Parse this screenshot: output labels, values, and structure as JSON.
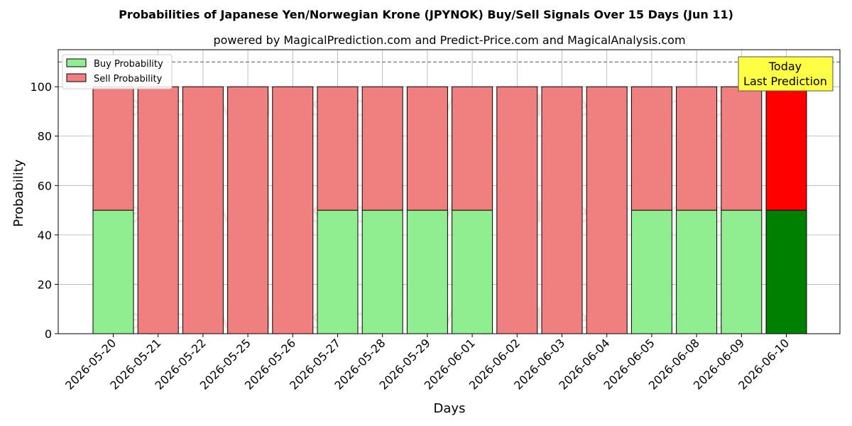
{
  "chart_data": {
    "type": "bar",
    "stacked": true,
    "title": "Probabilities of Japanese Yen/Norwegian Krone (JPYNOK) Buy/Sell Signals Over 15 Days (Jun 11)",
    "subtitle": "powered by MagicalPrediction.com and Predict-Price.com and MagicalAnalysis.com",
    "xlabel": "Days",
    "ylabel": "Probability",
    "ylim": [
      0,
      115
    ],
    "yticks": [
      0,
      20,
      40,
      60,
      80,
      100
    ],
    "grid": true,
    "legend_position": "top-left",
    "reference_line": 110,
    "categories": [
      "2026-05-20",
      "2026-05-21",
      "2026-05-22",
      "2026-05-25",
      "2026-05-26",
      "2026-05-27",
      "2026-05-28",
      "2026-05-29",
      "2026-06-01",
      "2026-06-02",
      "2026-06-03",
      "2026-06-04",
      "2026-06-05",
      "2026-06-08",
      "2026-06-09",
      "2026-06-10"
    ],
    "series": [
      {
        "name": "Buy Probability",
        "values": [
          50,
          0,
          0,
          0,
          0,
          50,
          50,
          50,
          50,
          0,
          0,
          0,
          50,
          50,
          50,
          50
        ],
        "color": "#90ee90",
        "highlight_color": "#008000"
      },
      {
        "name": "Sell Probability",
        "values": [
          50,
          100,
          100,
          100,
          100,
          50,
          50,
          50,
          50,
          100,
          100,
          100,
          50,
          50,
          50,
          50
        ],
        "color": "#f08080",
        "highlight_color": "#ff0000"
      }
    ],
    "highlight_index": 15,
    "annotation": {
      "lines": [
        "Today",
        "Last Prediction"
      ],
      "bg": "#ffff44"
    },
    "watermarks": [
      "MagicalAnalysis.com",
      "MagicalPrediction.com"
    ]
  }
}
